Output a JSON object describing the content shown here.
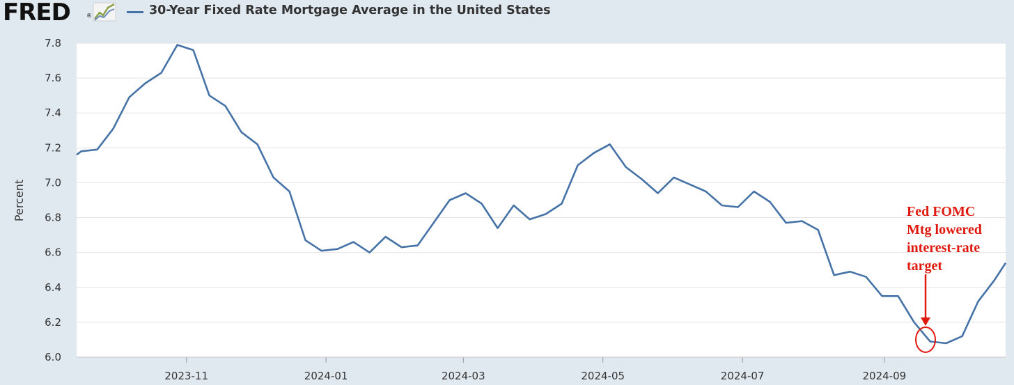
{
  "header": {
    "logo_text": "FRED",
    "logo_reg": "®",
    "title": "30-Year Fixed Rate Mortgage Average in the United States"
  },
  "colors": {
    "series": "#4572a7",
    "annotation": "#e0190f",
    "background": "#e1e9f0",
    "plot_bg": "#ffffff",
    "grid": "#e3e3e3"
  },
  "chart_data": {
    "type": "line",
    "title": "30-Year Fixed Rate Mortgage Average in the United States",
    "ylabel": "Percent",
    "xlabel": "",
    "ylim": [
      6.0,
      7.8
    ],
    "xlim": [
      "2023-09-14",
      "2024-10-24"
    ],
    "yticks": [
      "6.0",
      "6.2",
      "6.4",
      "6.6",
      "6.8",
      "7.0",
      "7.2",
      "7.4",
      "7.6",
      "7.8"
    ],
    "xticks": [
      {
        "date": "2023-11-01",
        "label": "2023-11"
      },
      {
        "date": "2024-01-01",
        "label": "2024-01"
      },
      {
        "date": "2024-03-01",
        "label": "2024-03"
      },
      {
        "date": "2024-05-01",
        "label": "2024-05"
      },
      {
        "date": "2024-07-01",
        "label": "2024-07"
      },
      {
        "date": "2024-09-01",
        "label": "2024-09"
      }
    ],
    "grid": true,
    "legend": "top-left",
    "series": [
      {
        "name": "30-Year Fixed Rate Mortgage Average in the United States",
        "x": [
          "2023-09-14",
          "2023-09-16",
          "2023-09-23",
          "2023-09-30",
          "2023-10-07",
          "2023-10-14",
          "2023-10-21",
          "2023-10-28",
          "2023-11-04",
          "2023-11-11",
          "2023-11-18",
          "2023-11-25",
          "2023-12-02",
          "2023-12-09",
          "2023-12-16",
          "2023-12-23",
          "2023-12-30",
          "2024-01-06",
          "2024-01-13",
          "2024-01-20",
          "2024-01-27",
          "2024-02-03",
          "2024-02-10",
          "2024-02-17",
          "2024-02-24",
          "2024-03-02",
          "2024-03-09",
          "2024-03-16",
          "2024-03-23",
          "2024-03-30",
          "2024-04-06",
          "2024-04-13",
          "2024-04-20",
          "2024-04-27",
          "2024-05-04",
          "2024-05-11",
          "2024-05-18",
          "2024-05-25",
          "2024-06-01",
          "2024-06-08",
          "2024-06-15",
          "2024-06-22",
          "2024-06-29",
          "2024-07-06",
          "2024-07-13",
          "2024-07-20",
          "2024-07-27",
          "2024-08-03",
          "2024-08-10",
          "2024-08-17",
          "2024-08-24",
          "2024-08-31",
          "2024-09-07",
          "2024-09-14",
          "2024-09-21",
          "2024-09-28",
          "2024-10-05",
          "2024-10-12",
          "2024-10-19",
          "2024-10-24"
        ],
        "values": [
          7.16,
          7.18,
          7.19,
          7.31,
          7.49,
          7.57,
          7.63,
          7.79,
          7.76,
          7.5,
          7.44,
          7.29,
          7.22,
          7.03,
          6.95,
          6.67,
          6.61,
          6.62,
          6.66,
          6.6,
          6.69,
          6.63,
          6.64,
          6.77,
          6.9,
          6.94,
          6.88,
          6.74,
          6.87,
          6.79,
          6.82,
          6.88,
          7.1,
          7.17,
          7.22,
          7.09,
          7.02,
          6.94,
          7.03,
          6.99,
          6.95,
          6.87,
          6.86,
          6.95,
          6.89,
          6.77,
          6.78,
          6.73,
          6.47,
          6.49,
          6.46,
          6.35,
          6.35,
          6.2,
          6.09,
          6.08,
          6.12,
          6.32,
          6.44,
          6.54
        ]
      }
    ],
    "annotations": [
      {
        "lines": [
          "Fed FOMC",
          "Mtg lowered",
          "interest-rate",
          "target"
        ],
        "date": "2024-09-19",
        "value": 6.1
      }
    ]
  }
}
